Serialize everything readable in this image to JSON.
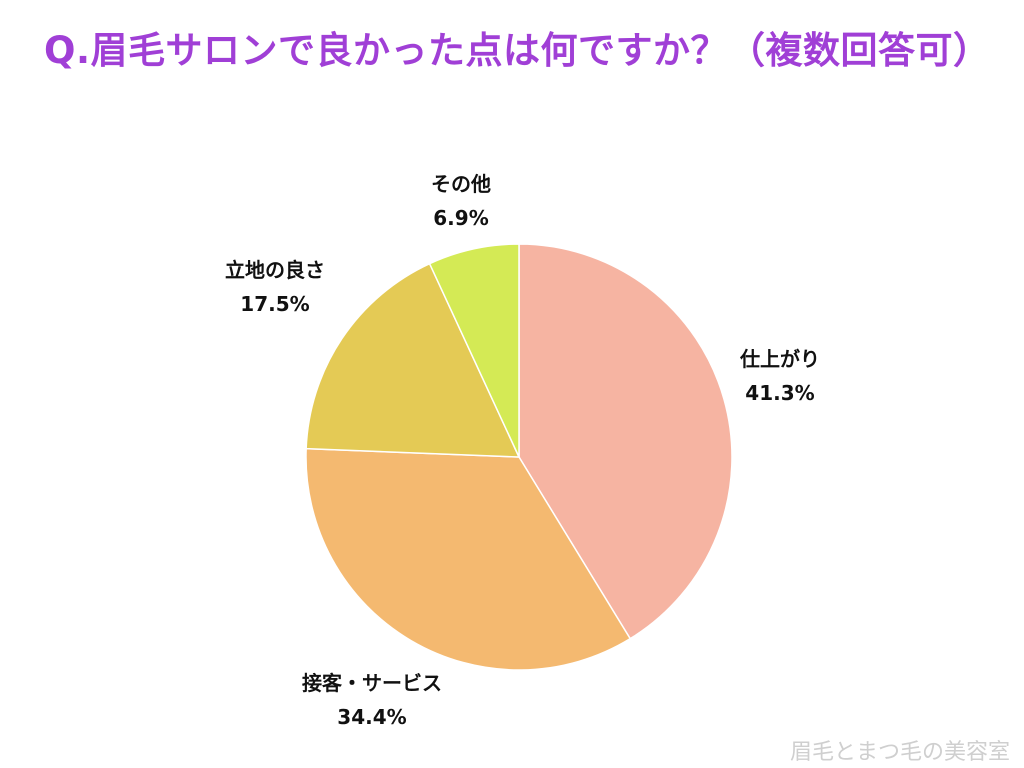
{
  "title": "Q.眉毛サロンで良かった点は何ですか？（複数回答可）",
  "title_color": "#a03fd6",
  "watermark": "眉毛とまつ毛の美容室",
  "chart_data": {
    "type": "pie",
    "start": "12 o'clock",
    "direction": "clockwise",
    "slices": [
      {
        "label": "仕上がり",
        "value": 41.3,
        "value_label": "41.3%",
        "color": "#f6b4a2"
      },
      {
        "label": "接客・サービス",
        "value": 34.4,
        "value_label": "34.4%",
        "color": "#f4b970"
      },
      {
        "label": "立地の良さ",
        "value": 17.5,
        "value_label": "17.5%",
        "color": "#e4ca55"
      },
      {
        "label": "その他",
        "value": 6.9,
        "value_label": "6.9%",
        "color": "#d4ea55"
      }
    ]
  }
}
